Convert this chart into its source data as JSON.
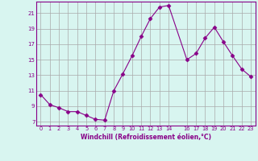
{
  "x": [
    0,
    1,
    2,
    3,
    4,
    5,
    6,
    7,
    8,
    9,
    10,
    11,
    12,
    13,
    14,
    16,
    17,
    18,
    19,
    20,
    21,
    22,
    23
  ],
  "y": [
    10.5,
    9.2,
    8.8,
    8.3,
    8.3,
    7.8,
    7.3,
    7.2,
    11.0,
    13.2,
    15.5,
    18.0,
    20.3,
    21.8,
    22.0,
    15.0,
    15.8,
    17.8,
    19.2,
    17.3,
    15.5,
    13.8,
    12.8
  ],
  "line_color": "#880088",
  "marker": "D",
  "marker_size": 2.5,
  "background_color": "#d8f5f0",
  "grid_color": "#aaaaaa",
  "xlabel": "Windchill (Refroidissement éolien,°C)",
  "xticks": [
    0,
    1,
    2,
    3,
    4,
    5,
    6,
    7,
    8,
    9,
    10,
    11,
    12,
    13,
    14,
    16,
    17,
    18,
    19,
    20,
    21,
    22,
    23
  ],
  "yticks": [
    7,
    9,
    11,
    13,
    15,
    17,
    19,
    21
  ],
  "ylim": [
    6.5,
    22.5
  ],
  "xlim": [
    -0.5,
    23.5
  ]
}
